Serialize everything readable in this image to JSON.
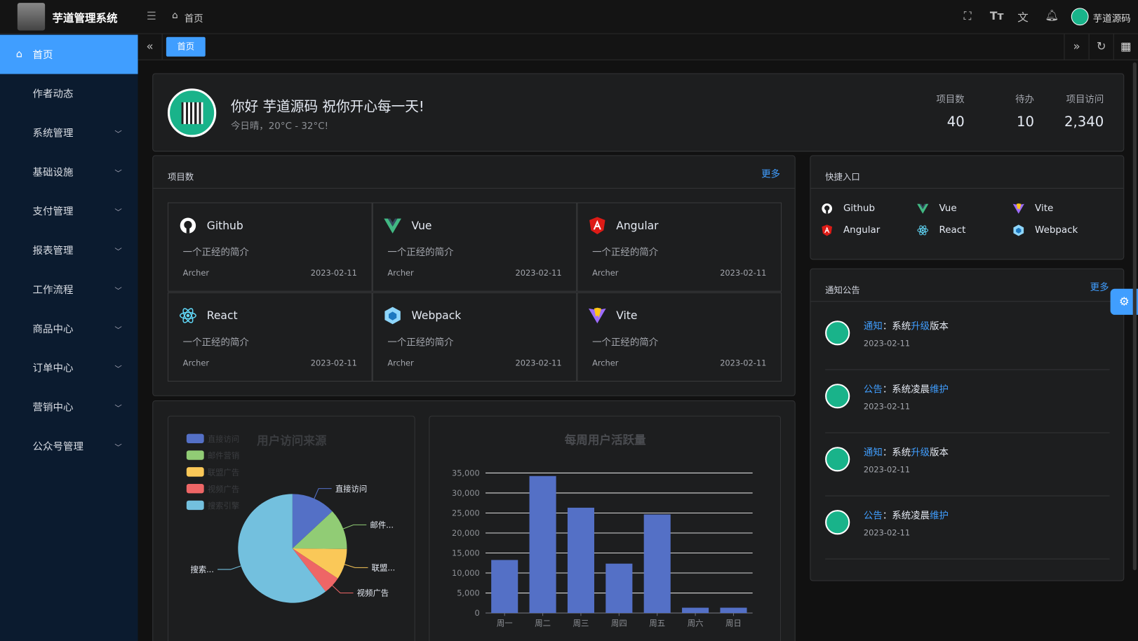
{
  "app": {
    "title": "芋道管理系统",
    "breadcrumb": "首页",
    "user": "芋道源码"
  },
  "sidebar": {
    "items": [
      {
        "label": "首页",
        "active": true
      },
      {
        "label": "作者动态"
      },
      {
        "label": "系统管理",
        "sub": true
      },
      {
        "label": "基础设施",
        "sub": true
      },
      {
        "label": "支付管理",
        "sub": true
      },
      {
        "label": "报表管理",
        "sub": true
      },
      {
        "label": "工作流程",
        "sub": true
      },
      {
        "label": "商品中心",
        "sub": true
      },
      {
        "label": "订单中心",
        "sub": true
      },
      {
        "label": "营销中心",
        "sub": true
      },
      {
        "label": "公众号管理",
        "sub": true
      }
    ]
  },
  "tabs": [
    {
      "label": "首页",
      "active": true
    }
  ],
  "welcome": {
    "greeting": "你好 芋道源码 祝你开心每一天!",
    "weather": "今日晴，20°C - 32°C!",
    "stats": [
      {
        "label": "项目数",
        "value": "40"
      },
      {
        "label": "待办",
        "value": "10"
      },
      {
        "label": "项目访问",
        "value": "2,340"
      }
    ]
  },
  "projects": {
    "title": "项目数",
    "more": "更多",
    "items": [
      {
        "name": "Github",
        "icon": "github-icon",
        "desc": "一个正经的简介",
        "author": "Archer",
        "date": "2023-02-11"
      },
      {
        "name": "Vue",
        "icon": "vue-icon",
        "desc": "一个正经的简介",
        "author": "Archer",
        "date": "2023-02-11"
      },
      {
        "name": "Angular",
        "icon": "angular-icon",
        "desc": "一个正经的简介",
        "author": "Archer",
        "date": "2023-02-11"
      },
      {
        "name": "React",
        "icon": "react-icon",
        "desc": "一个正经的简介",
        "author": "Archer",
        "date": "2023-02-11"
      },
      {
        "name": "Webpack",
        "icon": "webpack-icon",
        "desc": "一个正经的简介",
        "author": "Archer",
        "date": "2023-02-11"
      },
      {
        "name": "Vite",
        "icon": "vite-icon",
        "desc": "一个正经的简介",
        "author": "Archer",
        "date": "2023-02-11"
      }
    ]
  },
  "quick": {
    "title": "快捷入口",
    "items": [
      {
        "name": "Github",
        "icon": "github-icon"
      },
      {
        "name": "Vue",
        "icon": "vue-icon"
      },
      {
        "name": "Vite",
        "icon": "vite-icon"
      },
      {
        "name": "Angular",
        "icon": "angular-icon"
      },
      {
        "name": "React",
        "icon": "react-icon"
      },
      {
        "name": "Webpack",
        "icon": "webpack-icon"
      }
    ]
  },
  "notices": {
    "title": "通知公告",
    "more": "更多",
    "items": [
      {
        "type": "通知",
        "pre": "：系统",
        "hl": "升级",
        "post": "版本",
        "date": "2023-02-11"
      },
      {
        "type": "公告",
        "pre": "：系统凌晨",
        "hl": "维护",
        "post": "",
        "date": "2023-02-11"
      },
      {
        "type": "通知",
        "pre": "：系统",
        "hl": "升级",
        "post": "版本",
        "date": "2023-02-11"
      },
      {
        "type": "公告",
        "pre": "：系统凌晨",
        "hl": "维护",
        "post": "",
        "date": "2023-02-11"
      }
    ]
  },
  "chart_data": [
    {
      "type": "pie",
      "title": "用户访问来源",
      "legend_position": "top-left",
      "categories": [
        "直接访问",
        "邮件营销",
        "联盟广告",
        "视频广告",
        "搜索引擎"
      ],
      "short_labels": [
        "直接访问",
        "邮件...",
        "联盟...",
        "视频广告",
        "搜索..."
      ],
      "values": [
        335,
        310,
        234,
        135,
        1548
      ],
      "colors": [
        "#5470c6",
        "#91cc75",
        "#fac858",
        "#ee6666",
        "#73c0de"
      ]
    },
    {
      "type": "bar",
      "title": "每周用户活跃量",
      "categories": [
        "周一",
        "周二",
        "周三",
        "周四",
        "周五",
        "周六",
        "周日"
      ],
      "values": [
        13253,
        34235,
        26321,
        12340,
        24643,
        1322,
        1324
      ],
      "ylim": [
        0,
        35000
      ],
      "yticks": [
        "0",
        "5,000",
        "10,000",
        "15,000",
        "20,000",
        "25,000",
        "30,000",
        "35,000"
      ],
      "grid": true,
      "color": "#5470c6"
    }
  ]
}
